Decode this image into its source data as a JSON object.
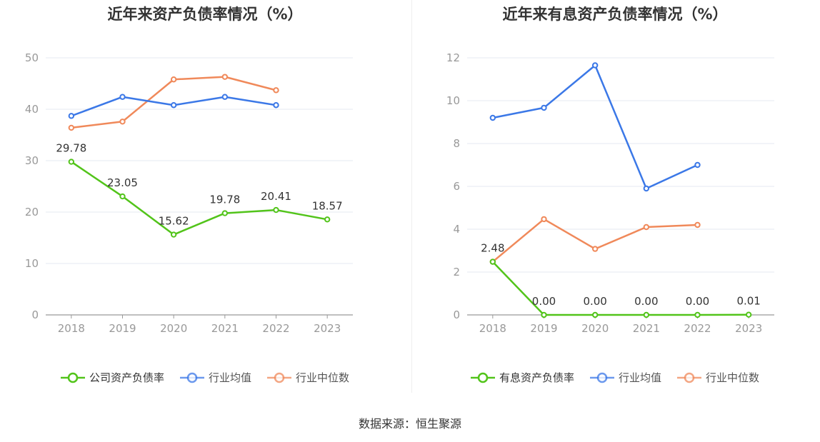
{
  "source": "数据来源：恒生聚源",
  "chart_data": [
    {
      "type": "line",
      "title": "近年来资产负债率情况（%）",
      "categories": [
        "2018",
        "2019",
        "2020",
        "2021",
        "2022",
        "2023"
      ],
      "ylim": [
        0,
        50
      ],
      "yticks": [
        0,
        10,
        20,
        30,
        40,
        50
      ],
      "grid": true,
      "legend_position": "bottom",
      "series": [
        {
          "name": "公司资产负债率",
          "color": "#52c41a",
          "values": [
            29.78,
            23.05,
            15.62,
            19.78,
            20.41,
            18.57
          ],
          "labels": [
            "29.78",
            "23.05",
            "15.62",
            "19.78",
            "20.41",
            "18.57"
          ]
        },
        {
          "name": "行业均值",
          "color": "#3b78e7",
          "values": [
            38.7,
            42.4,
            40.8,
            42.4,
            40.8,
            null
          ]
        },
        {
          "name": "行业中位数",
          "color": "#f0895a",
          "values": [
            36.4,
            37.6,
            45.8,
            46.3,
            43.7,
            null
          ]
        }
      ]
    },
    {
      "type": "line",
      "title": "近年来有息资产负债率情况（%）",
      "categories": [
        "2018",
        "2019",
        "2020",
        "2021",
        "2022",
        "2023"
      ],
      "ylim": [
        0,
        12
      ],
      "yticks": [
        0,
        2,
        4,
        6,
        8,
        10,
        12
      ],
      "grid": true,
      "legend_position": "bottom",
      "series": [
        {
          "name": "有息资产负债率",
          "color": "#52c41a",
          "values": [
            2.48,
            0.0,
            0.0,
            0.0,
            0.0,
            0.01
          ],
          "labels": [
            "2.48",
            "0.00",
            "0.00",
            "0.00",
            "0.00",
            "0.01"
          ]
        },
        {
          "name": "行业均值",
          "color": "#3b78e7",
          "values": [
            9.2,
            9.67,
            11.65,
            5.9,
            7.0,
            null
          ]
        },
        {
          "name": "行业中位数",
          "color": "#f0895a",
          "values": [
            2.48,
            4.47,
            3.08,
            4.1,
            4.2,
            null
          ]
        }
      ]
    }
  ]
}
